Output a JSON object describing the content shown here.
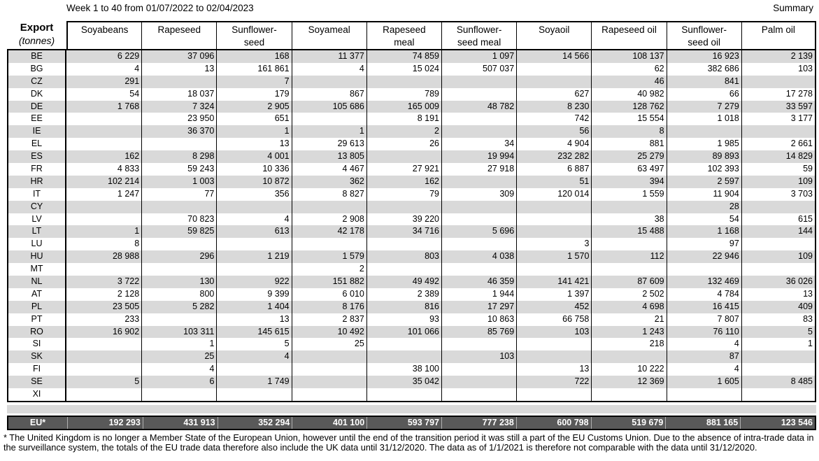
{
  "header": {
    "title": "Week 1 to 40 from 01/07/2022 to 02/04/2023",
    "summary_label": "Summary"
  },
  "table": {
    "corner_title": "Export",
    "corner_subtitle": "(tonnes)",
    "columns": [
      "Soyabeans",
      "Rapeseed",
      "Sunflower-\nseed",
      "Soyameal",
      "Rapeseed\nmeal",
      "Sunflower-\nseed meal",
      "Soyaoil",
      "Rapeseed oil",
      "Sunflower-\nseed oil",
      "Palm oil"
    ],
    "rows": [
      {
        "code": "BE",
        "values": [
          "6 229",
          "37 096",
          "168",
          "11 377",
          "74 859",
          "1 097",
          "14 566",
          "108 137",
          "16 923",
          "2 139"
        ]
      },
      {
        "code": "BG",
        "values": [
          "4",
          "13",
          "161 861",
          "4",
          "15 024",
          "507 037",
          "",
          "62",
          "382 686",
          "103"
        ]
      },
      {
        "code": "CZ",
        "values": [
          "291",
          "",
          "7",
          "",
          "",
          "",
          "",
          "46",
          "841",
          ""
        ]
      },
      {
        "code": "DK",
        "values": [
          "54",
          "18 037",
          "179",
          "867",
          "789",
          "",
          "627",
          "40 982",
          "66",
          "17 278"
        ]
      },
      {
        "code": "DE",
        "values": [
          "1 768",
          "7 324",
          "2 905",
          "105 686",
          "165 009",
          "48 782",
          "8 230",
          "128 762",
          "7 279",
          "33 597"
        ]
      },
      {
        "code": "EE",
        "values": [
          "",
          "23 950",
          "651",
          "",
          "8 191",
          "",
          "742",
          "15 554",
          "1 018",
          "3 177"
        ]
      },
      {
        "code": "IE",
        "values": [
          "",
          "36 370",
          "1",
          "1",
          "2",
          "",
          "56",
          "8",
          "",
          ""
        ]
      },
      {
        "code": "EL",
        "values": [
          "",
          "",
          "13",
          "29 613",
          "26",
          "34",
          "4 904",
          "881",
          "1 985",
          "2 661"
        ]
      },
      {
        "code": "ES",
        "values": [
          "162",
          "8 298",
          "4 001",
          "13 805",
          "",
          "19 994",
          "232 282",
          "25 279",
          "89 893",
          "14 829"
        ]
      },
      {
        "code": "FR",
        "values": [
          "4 833",
          "59 243",
          "10 336",
          "4 467",
          "27 921",
          "27 918",
          "6 887",
          "63 497",
          "102 393",
          "59"
        ]
      },
      {
        "code": "HR",
        "values": [
          "102 214",
          "1 003",
          "10 872",
          "362",
          "162",
          "",
          "51",
          "394",
          "2 597",
          "109"
        ]
      },
      {
        "code": "IT",
        "values": [
          "1 247",
          "77",
          "356",
          "8 827",
          "79",
          "309",
          "120 014",
          "1 559",
          "11 904",
          "3 703"
        ]
      },
      {
        "code": "CY",
        "values": [
          "",
          "",
          "",
          "",
          "",
          "",
          "",
          "",
          "28",
          ""
        ]
      },
      {
        "code": "LV",
        "values": [
          "",
          "70 823",
          "4",
          "2 908",
          "39 220",
          "",
          "",
          "38",
          "54",
          "615"
        ]
      },
      {
        "code": "LT",
        "values": [
          "1",
          "59 825",
          "613",
          "42 178",
          "34 716",
          "5 696",
          "",
          "15 488",
          "1 168",
          "144"
        ]
      },
      {
        "code": "LU",
        "values": [
          "8",
          "",
          "",
          "",
          "",
          "",
          "3",
          "",
          "97",
          ""
        ]
      },
      {
        "code": "HU",
        "values": [
          "28 988",
          "296",
          "1 219",
          "1 579",
          "803",
          "4 038",
          "1 570",
          "112",
          "22 946",
          "109"
        ]
      },
      {
        "code": "MT",
        "values": [
          "",
          "",
          "",
          "2",
          "",
          "",
          "",
          "",
          "",
          ""
        ]
      },
      {
        "code": "NL",
        "values": [
          "3 722",
          "130",
          "922",
          "151 882",
          "49 492",
          "46 359",
          "141 421",
          "87 609",
          "132 469",
          "36 026"
        ]
      },
      {
        "code": "AT",
        "values": [
          "2 128",
          "800",
          "9 399",
          "6 010",
          "2 389",
          "1 944",
          "1 397",
          "2 502",
          "4 784",
          "13"
        ]
      },
      {
        "code": "PL",
        "values": [
          "23 505",
          "5 282",
          "1 404",
          "8 176",
          "816",
          "17 297",
          "452",
          "4 698",
          "16 415",
          "409"
        ]
      },
      {
        "code": "PT",
        "values": [
          "233",
          "",
          "13",
          "2 837",
          "93",
          "10 863",
          "66 758",
          "21",
          "7 807",
          "83"
        ]
      },
      {
        "code": "RO",
        "values": [
          "16 902",
          "103 311",
          "145 615",
          "10 492",
          "101 066",
          "85 769",
          "103",
          "1 243",
          "76 110",
          "5"
        ]
      },
      {
        "code": "SI",
        "values": [
          "",
          "1",
          "5",
          "25",
          "",
          "",
          "",
          "218",
          "4",
          "1"
        ]
      },
      {
        "code": "SK",
        "values": [
          "",
          "25",
          "4",
          "",
          "",
          "103",
          "",
          "",
          "87",
          ""
        ]
      },
      {
        "code": "FI",
        "values": [
          "",
          "4",
          "",
          "",
          "38 100",
          "",
          "13",
          "10 222",
          "4",
          ""
        ]
      },
      {
        "code": "SE",
        "values": [
          "5",
          "6",
          "1 749",
          "",
          "35 042",
          "",
          "722",
          "12 369",
          "1 605",
          "8 485"
        ]
      },
      {
        "code": "XI",
        "values": [
          "",
          "",
          "",
          "",
          "",
          "",
          "",
          "",
          "",
          ""
        ]
      }
    ],
    "total": {
      "code": "EU*",
      "values": [
        "192 293",
        "431 913",
        "352 294",
        "401 100",
        "593 797",
        "777 238",
        "600 798",
        "519 679",
        "881 165",
        "123 546"
      ]
    }
  },
  "footnote": "* The United Kingdom is no longer a Member State of the European Union, however until the end of the transition period it was still a part of the EU Customs Union. Due to the absence of intra-trade data in the surveillance system, the totals of the EU trade data therefore also include the UK data until 31/12/2020. The data as of 1/1/2021 is therefore not comparable with the data until 31/12/2020.",
  "colors": {
    "stripe": "#d9d9d9",
    "separator_band": "#d9d9d9",
    "total_background": "#595959",
    "total_text": "#ffffff",
    "border": "#000000"
  }
}
